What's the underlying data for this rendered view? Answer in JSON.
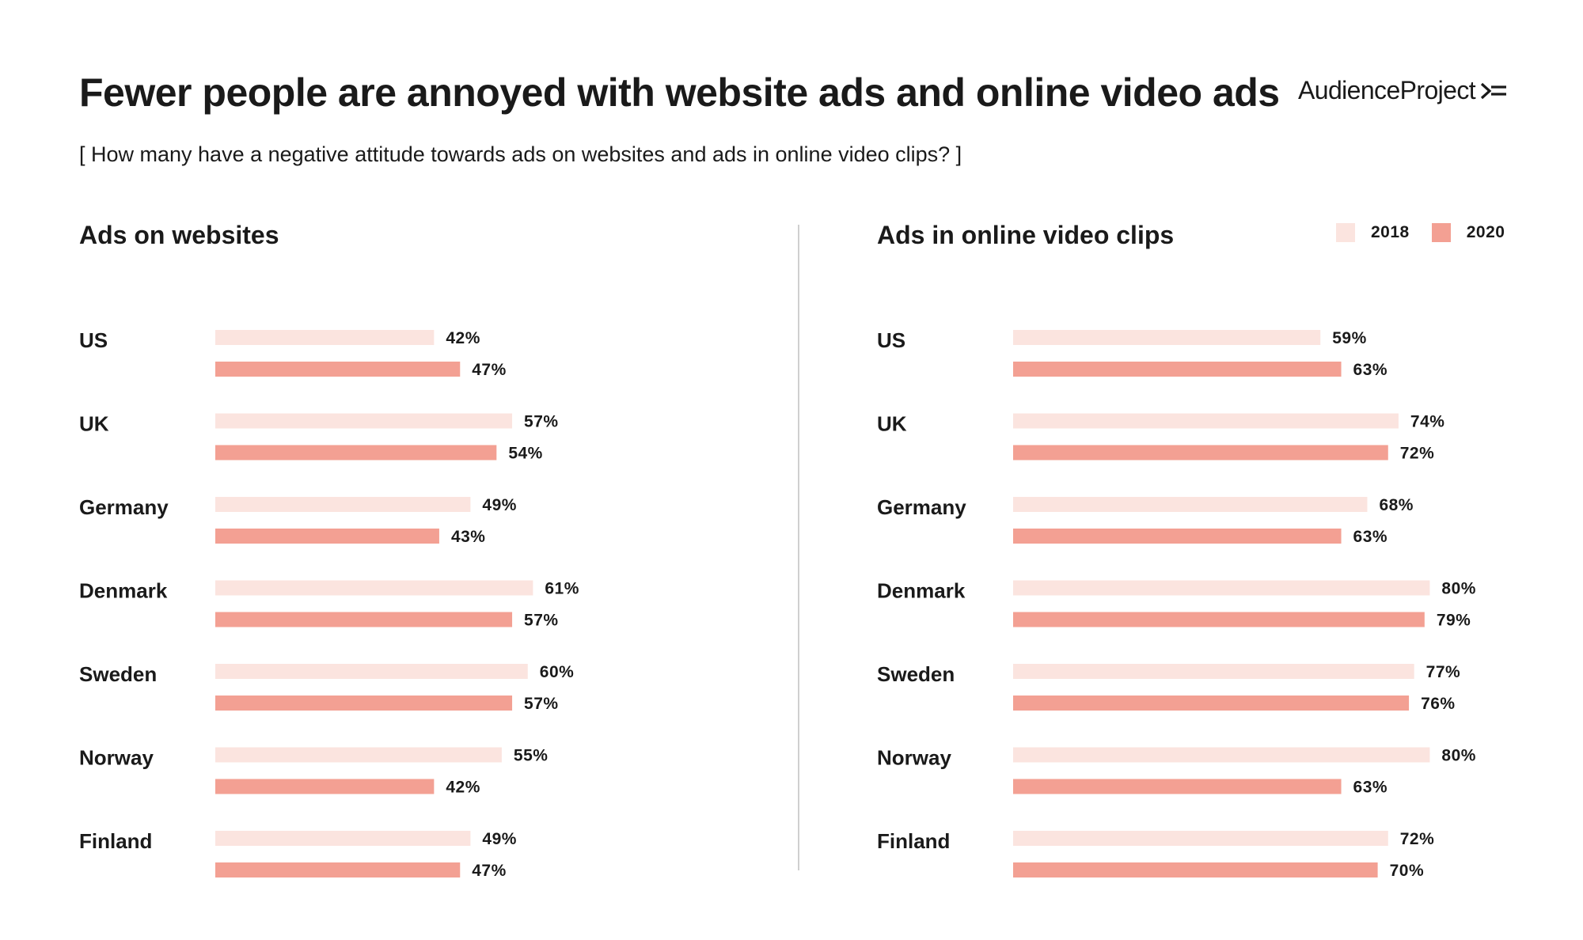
{
  "header": {
    "title": "Fewer people are annoyed with website ads and online video ads",
    "subtitle": "[ How many have a negative attitude towards ads on websites and ads in online video clips? ]",
    "brand": "AudienceProject"
  },
  "legend": [
    {
      "label": "2018",
      "color": "#fbe4df"
    },
    {
      "label": "2020",
      "color": "#f3a093"
    }
  ],
  "chart_data": [
    {
      "type": "bar",
      "orientation": "horizontal",
      "title": "Ads on websites",
      "categories": [
        "US",
        "UK",
        "Germany",
        "Denmark",
        "Sweden",
        "Norway",
        "Finland"
      ],
      "series": [
        {
          "name": "2018",
          "values": [
            42,
            57,
            49,
            61,
            60,
            55,
            49
          ]
        },
        {
          "name": "2020",
          "values": [
            47,
            54,
            43,
            57,
            57,
            42,
            47
          ]
        }
      ],
      "value_suffix": "%",
      "xlim": [
        0,
        100
      ]
    },
    {
      "type": "bar",
      "orientation": "horizontal",
      "title": "Ads in online video clips",
      "categories": [
        "US",
        "UK",
        "Germany",
        "Denmark",
        "Sweden",
        "Norway",
        "Finland"
      ],
      "series": [
        {
          "name": "2018",
          "values": [
            59,
            74,
            68,
            80,
            77,
            80,
            72
          ]
        },
        {
          "name": "2020",
          "values": [
            63,
            72,
            63,
            79,
            76,
            63,
            70
          ]
        }
      ],
      "value_suffix": "%",
      "xlim": [
        0,
        100
      ]
    }
  ]
}
